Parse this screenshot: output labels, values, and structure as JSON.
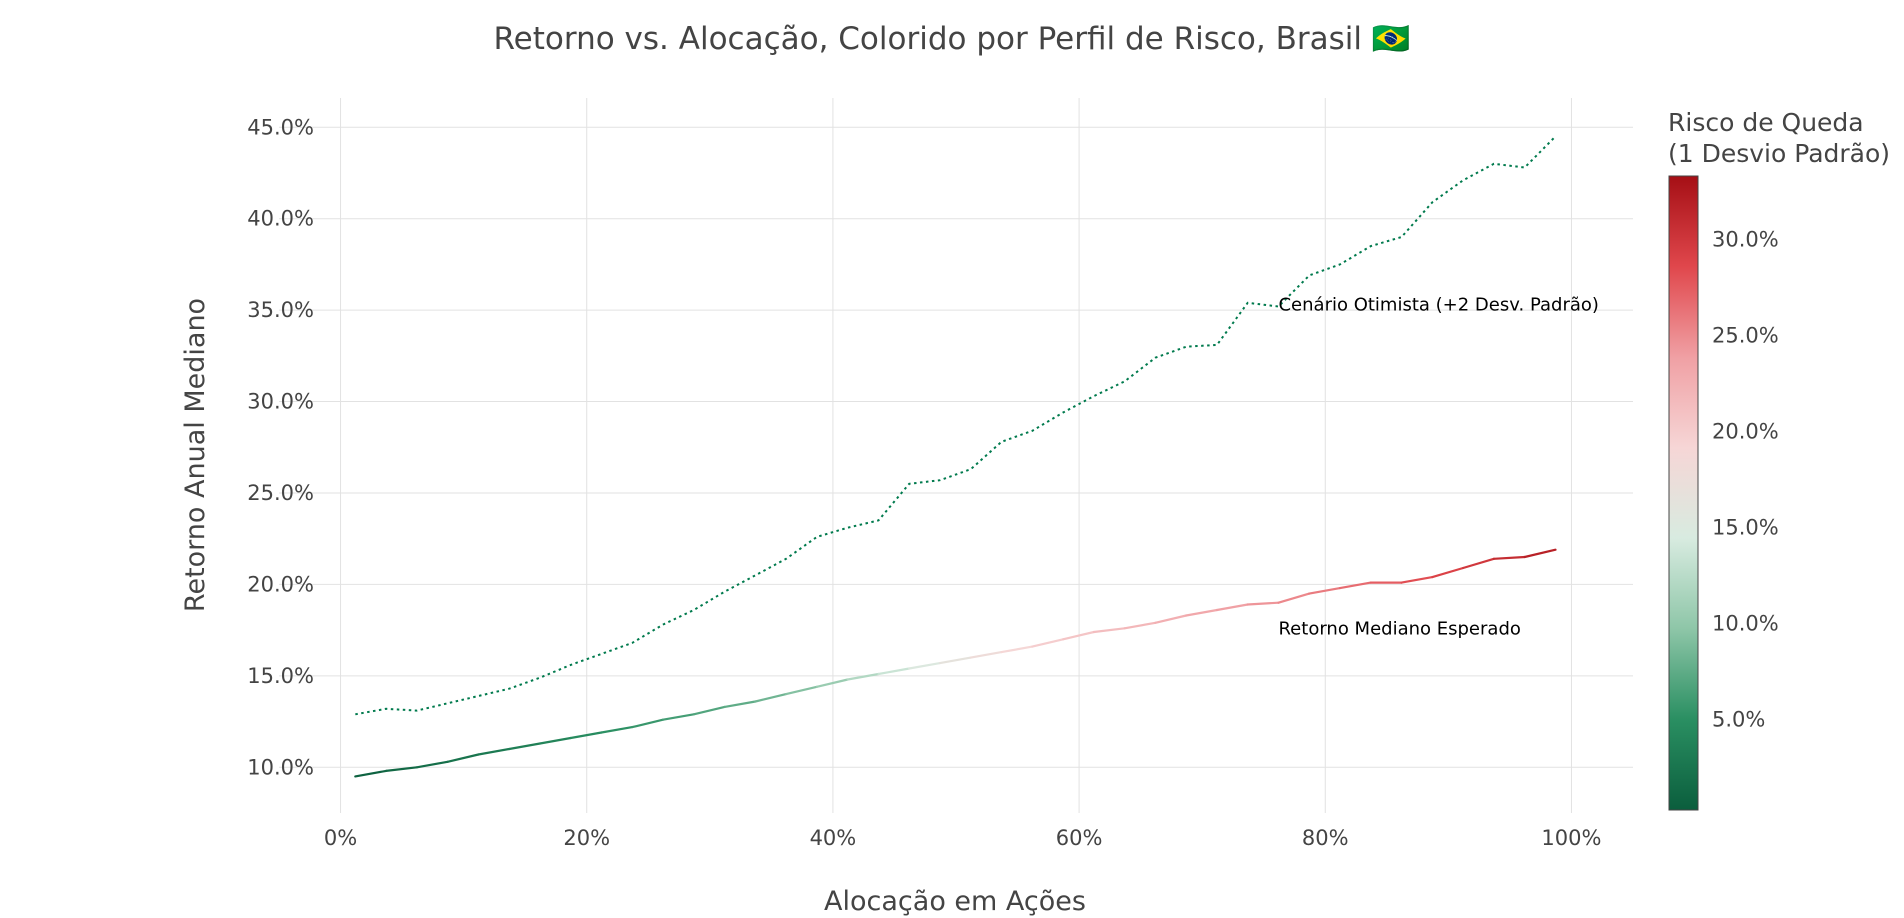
{
  "chart_data": {
    "type": "line",
    "title": "Retorno vs. Alocação, Colorido por Perfil de Risco, Brasil 🇧🇷",
    "xlabel": "Alocação em Ações",
    "ylabel": "Retorno Anual Mediano",
    "xlim": [
      -5,
      105
    ],
    "ylim": [
      7.5,
      46.6
    ],
    "x_ticks": [
      0,
      20,
      40,
      60,
      80,
      100
    ],
    "x_tick_labels": [
      "0%",
      "20%",
      "40%",
      "60%",
      "80%",
      "100%"
    ],
    "y_ticks": [
      10,
      15,
      20,
      25,
      30,
      35,
      40,
      45
    ],
    "y_tick_labels": [
      "10.0%",
      "15.0%",
      "20.0%",
      "25.0%",
      "30.0%",
      "35.0%",
      "40.0%",
      "45.0%"
    ],
    "grid": true,
    "x": [
      1.2,
      3.7,
      6.2,
      8.7,
      11.2,
      13.7,
      16.2,
      18.7,
      21.2,
      23.7,
      26.2,
      28.7,
      31.2,
      33.7,
      36.2,
      38.7,
      41.2,
      43.7,
      46.2,
      48.7,
      51.2,
      53.7,
      56.2,
      58.7,
      61.2,
      63.7,
      66.2,
      68.7,
      71.2,
      73.7,
      76.2,
      78.7,
      81.2,
      83.7,
      86.2,
      88.7,
      91.2,
      93.7,
      96.2,
      98.7
    ],
    "series": [
      {
        "name": "Retorno Mediano Esperado",
        "style": "solid",
        "colored_by": "risk",
        "values": [
          9.5,
          9.8,
          10.0,
          10.3,
          10.7,
          11.0,
          11.3,
          11.6,
          11.9,
          12.2,
          12.6,
          12.9,
          13.3,
          13.6,
          14.0,
          14.4,
          14.8,
          15.1,
          15.4,
          15.7,
          16.0,
          16.3,
          16.6,
          17.0,
          17.4,
          17.6,
          17.9,
          18.3,
          18.6,
          18.9,
          19.0,
          19.5,
          19.8,
          20.1,
          20.1,
          20.4,
          20.9,
          21.4,
          21.5,
          21.9
        ],
        "risk": [
          0.5,
          1.1,
          1.6,
          2.1,
          2.7,
          3.2,
          3.8,
          4.3,
          4.9,
          5.4,
          6.0,
          6.6,
          7.2,
          7.8,
          8.8,
          9.8,
          11.2,
          12.8,
          14.3,
          15.8,
          17.2,
          18.5,
          19.5,
          20.3,
          21.0,
          21.6,
          22.2,
          22.9,
          23.5,
          24.1,
          24.8,
          25.5,
          26.2,
          27.0,
          27.8,
          28.6,
          29.4,
          30.3,
          31.3,
          32.3
        ]
      },
      {
        "name": "Cenário Otimista (+2 Desv. Padrão)",
        "style": "dotted",
        "color": "#007a4d",
        "values": [
          12.9,
          13.2,
          13.1,
          13.5,
          13.9,
          14.3,
          14.9,
          15.6,
          16.2,
          16.8,
          17.8,
          18.6,
          19.6,
          20.5,
          21.4,
          22.6,
          23.1,
          23.5,
          25.5,
          25.7,
          26.3,
          27.8,
          28.4,
          29.4,
          30.3,
          31.1,
          32.4,
          33.0,
          33.1,
          35.4,
          35.2,
          36.9,
          37.5,
          38.5,
          39.0,
          40.9,
          42.1,
          43.0,
          42.8,
          44.5
        ]
      }
    ],
    "annotations": [
      {
        "text": "Cenário Otimista (+2 Desv. Padrão)",
        "x": 76.2,
        "y": 35.3
      },
      {
        "text": "Retorno Mediano Esperado",
        "x": 76.2,
        "y": 17.6
      }
    ],
    "colorbar": {
      "title_line1": "Risco de Queda",
      "title_line2": "(1 Desvio Padrão)",
      "range": [
        0.3,
        33.3
      ],
      "ticks": [
        5,
        10,
        15,
        20,
        25,
        30
      ],
      "tick_labels": [
        "5.0%",
        "10.0%",
        "15.0%",
        "20.0%",
        "25.0%",
        "30.0%"
      ],
      "colorscale": [
        "#0b5e3d",
        "#2a8f62",
        "#8ec6a8",
        "#d8ebe0",
        "#f6d6d6",
        "#f0a0a4",
        "#e0474c",
        "#a50f15"
      ]
    },
    "colors": {
      "gridline": "#e2e2e2",
      "text": "#444444"
    }
  }
}
